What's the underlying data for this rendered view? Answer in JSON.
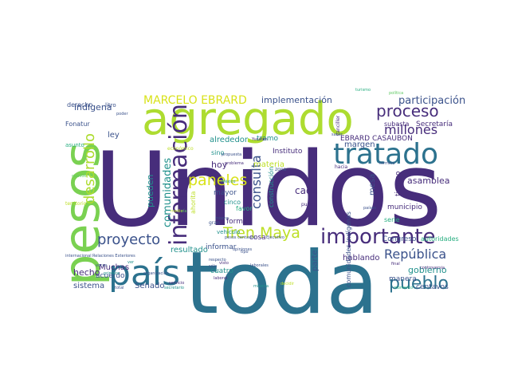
{
  "word_cloud": {
    "background": "#ffffff",
    "palette": [
      "#440154",
      "#472d7b",
      "#3b528b",
      "#2c728e",
      "#21918c",
      "#28ae80",
      "#5ec962",
      "#addc30",
      "#fde725"
    ],
    "words": [
      {
        "text": "Unidos",
        "color": "#472d7b",
        "vertical": false
      },
      {
        "text": "toda",
        "color": "#2c728e",
        "vertical": false
      },
      {
        "text": "pesos",
        "color": "#7ad151",
        "vertical": true
      },
      {
        "text": "agregado",
        "color": "#addc30",
        "vertical": false
      },
      {
        "text": "tratado",
        "color": "#2c728e",
        "vertical": false
      },
      {
        "text": "país",
        "color": "#2c728e",
        "vertical": false
      },
      {
        "text": "información",
        "color": "#472d7b",
        "vertical": true
      },
      {
        "text": "importante",
        "color": "#472d7b",
        "vertical": false
      },
      {
        "text": "pueblo",
        "color": "#2c728e",
        "vertical": false
      },
      {
        "text": "proceso",
        "color": "#472d7b",
        "vertical": false
      },
      {
        "text": "Tren Maya",
        "color": "#bddf26",
        "vertical": false
      },
      {
        "text": "paneles",
        "color": "#d8e219",
        "vertical": false
      },
      {
        "text": "proyecto",
        "color": "#3b528b",
        "vertical": false
      },
      {
        "text": "millones",
        "color": "#472d7b",
        "vertical": false
      },
      {
        "text": "República",
        "color": "#3b528b",
        "vertical": false
      },
      {
        "text": "desarrollo",
        "color": "#addc30",
        "vertical": true
      },
      {
        "text": "MARCELO EBRARD",
        "color": "#d8e219",
        "vertical": false
      },
      {
        "text": "participación",
        "color": "#3b528b",
        "vertical": false
      },
      {
        "text": "consulta",
        "color": "#3b528b",
        "vertical": true
      },
      {
        "text": "comunidades",
        "color": "#21918c",
        "vertical": true
      },
      {
        "text": "implementación",
        "color": "#3b528b",
        "vertical": false
      },
      {
        "text": "asamblea",
        "color": "#472d7b",
        "vertical": false
      },
      {
        "text": "indígena",
        "color": "#3b528b",
        "vertical": false
      },
      {
        "text": "gobierno",
        "color": "#21918c",
        "vertical": false
      },
      {
        "text": "pueden",
        "color": "#21918c",
        "vertical": true
      },
      {
        "text": "cada",
        "color": "#472d7b",
        "vertical": false
      },
      {
        "text": "hecho",
        "color": "#472d7b",
        "vertical": false
      },
      {
        "text": "hablando",
        "color": "#472d7b",
        "vertical": false
      },
      {
        "text": "sistema",
        "color": "#3b528b",
        "vertical": false
      },
      {
        "text": "Senado",
        "color": "#3b528b",
        "vertical": false
      },
      {
        "text": "resultado",
        "color": "#21918c",
        "vertical": false
      },
      {
        "text": "Muchas",
        "color": "#472d7b",
        "vertical": false
      },
      {
        "text": "acuerdo",
        "color": "#3b528b",
        "vertical": false
      },
      {
        "text": "cuatro",
        "color": "#21918c",
        "vertical": false
      },
      {
        "text": "informar",
        "color": "#3b528b",
        "vertical": false
      },
      {
        "text": "hoy",
        "color": "#472d7b",
        "vertical": false
      },
      {
        "text": "ley",
        "color": "#3b528b",
        "vertical": false
      },
      {
        "text": "margen",
        "color": "#3b528b",
        "vertical": false
      },
      {
        "text": "materia",
        "color": "#bddf26",
        "vertical": false
      },
      {
        "text": "tramo",
        "color": "#21918c",
        "vertical": false
      },
      {
        "text": "alrededor",
        "color": "#21918c",
        "vertical": false
      },
      {
        "text": "Secretaría",
        "color": "#472d7b",
        "vertical": false
      },
      {
        "text": "subasta",
        "color": "#472d7b",
        "vertical": false
      },
      {
        "text": "EBRARD CASAUBON",
        "color": "#472d7b",
        "vertical": false
      },
      {
        "text": "comunidades indígenas",
        "color": "#3b528b",
        "vertical": true
      },
      {
        "text": "municipio",
        "color": "#472d7b",
        "vertical": false
      },
      {
        "text": "Congreso",
        "color": "#3b528b",
        "vertical": false
      },
      {
        "text": "autoridades",
        "color": "#28ae80",
        "vertical": false
      },
      {
        "text": "manera",
        "color": "#3b528b",
        "vertical": false
      },
      {
        "text": "centavos",
        "color": "#3b528b",
        "vertical": false
      },
      {
        "text": "Instituto",
        "color": "#472d7b",
        "vertical": false
      },
      {
        "text": "mesa",
        "color": "#3b528b",
        "vertical": true
      },
      {
        "text": "parte",
        "color": "#3b528b",
        "vertical": true
      },
      {
        "text": "tiempo",
        "color": "#472d7b",
        "vertical": true
      },
      {
        "text": "serie",
        "color": "#28ae80",
        "vertical": false
      },
      {
        "text": "forma",
        "color": "#472d7b",
        "vertical": false
      },
      {
        "text": "mayor",
        "color": "#3b528b",
        "vertical": false
      },
      {
        "text": "cosa",
        "color": "#472d7b",
        "vertical": false
      },
      {
        "text": "Fonatur",
        "color": "#3b528b",
        "vertical": false
      },
      {
        "text": "derecho",
        "color": "#3b528b",
        "vertical": false
      },
      {
        "text": "asunto",
        "color": "#28ae80",
        "vertical": false
      },
      {
        "text": "sino",
        "color": "#21918c",
        "vertical": false
      },
      {
        "text": "cinco",
        "color": "#21918c",
        "vertical": false
      },
      {
        "text": "favor",
        "color": "#28ae80",
        "vertical": false
      },
      {
        "text": "ahorita",
        "color": "#bddf26",
        "vertical": true
      },
      {
        "text": "construcción",
        "color": "#21918c",
        "vertical": true
      },
      {
        "text": "territorio",
        "color": "#bddf26",
        "vertical": false
      },
      {
        "text": "vehículo",
        "color": "#21918c",
        "vertical": false
      },
      {
        "text": "litro",
        "color": "#3b528b",
        "vertical": false
      },
      {
        "text": "económico",
        "color": "#bddf26",
        "vertical": false
      },
      {
        "text": "propuesta",
        "color": "#3b528b",
        "vertical": false
      },
      {
        "text": "Yucatán",
        "color": "#472d7b",
        "vertical": false
      },
      {
        "text": "problema",
        "color": "#472d7b",
        "vertical": false
      },
      {
        "text": "México",
        "color": "#21918c",
        "vertical": false
      },
      {
        "text": "zona",
        "color": "#3b528b",
        "vertical": false
      },
      {
        "text": "hacia",
        "color": "#472d7b",
        "vertical": false
      },
      {
        "text": "punto",
        "color": "#472d7b",
        "vertical": false
      },
      {
        "text": "gran",
        "color": "#3b528b",
        "vertical": false
      },
      {
        "text": "mismo",
        "color": "#3b528b",
        "vertical": false
      },
      {
        "text": "pesos centavos",
        "color": "#3b528b",
        "vertical": false
      },
      {
        "text": "Ejecutivo",
        "color": "#3b528b",
        "vertical": false
      },
      {
        "text": "sólo",
        "color": "#3b528b",
        "vertical": false
      },
      {
        "text": "servicio",
        "color": "#472d7b",
        "vertical": false
      },
      {
        "text": "secretario",
        "color": "#21918c",
        "vertical": false
      },
      {
        "text": "opiniones",
        "color": "#3b528b",
        "vertical": false
      },
      {
        "text": "laborales",
        "color": "#3b528b",
        "vertical": false
      },
      {
        "text": "Relaciones Exteriores",
        "color": "#3b528b",
        "vertical": false
      },
      {
        "text": "internacional",
        "color": "#3b528b",
        "vertical": false
      },
      {
        "text": "primera",
        "color": "#21918c",
        "vertical": false
      },
      {
        "text": "organización",
        "color": "#3b528b",
        "vertical": false
      },
      {
        "text": "minería",
        "color": "#21918c",
        "vertical": false
      },
      {
        "text": "decidir",
        "color": "#bddf26",
        "vertical": false
      },
      {
        "text": "total",
        "color": "#3b528b",
        "vertical": false
      },
      {
        "text": "final",
        "color": "#472d7b",
        "vertical": false
      },
      {
        "text": "controversia",
        "color": "#472d7b",
        "vertical": false
      },
      {
        "text": "momento",
        "color": "#28ae80",
        "vertical": false
      },
      {
        "text": "canciller",
        "color": "#472d7b",
        "vertical": true
      },
      {
        "text": "turismo",
        "color": "#28ae80",
        "vertical": false
      },
      {
        "text": "política",
        "color": "#5ec962",
        "vertical": false
      },
      {
        "text": "poder",
        "color": "#3b528b",
        "vertical": false
      },
      {
        "text": "nuevos",
        "color": "#5ec962",
        "vertical": false
      },
      {
        "text": "respecto",
        "color": "#3b528b",
        "vertical": false
      },
      {
        "text": "visto",
        "color": "#472d7b",
        "vertical": false
      },
      {
        "text": "tipo",
        "color": "#3b528b",
        "vertical": false
      },
      {
        "text": "laboral",
        "color": "#472d7b",
        "vertical": false
      },
      {
        "text": "ver",
        "color": "#21918c",
        "vertical": false
      },
      {
        "text": "voces",
        "color": "#3b528b",
        "vertical": false
      },
      {
        "text": "medio",
        "color": "#bddf26",
        "vertical": false
      },
      {
        "text": "saber",
        "color": "#3b528b",
        "vertical": false
      },
      {
        "text": "término",
        "color": "#3b528b",
        "vertical": false
      },
      {
        "text": "vía",
        "color": "#5ec962",
        "vertical": false
      },
      {
        "text": "países",
        "color": "#3b528b",
        "vertical": false
      }
    ]
  }
}
